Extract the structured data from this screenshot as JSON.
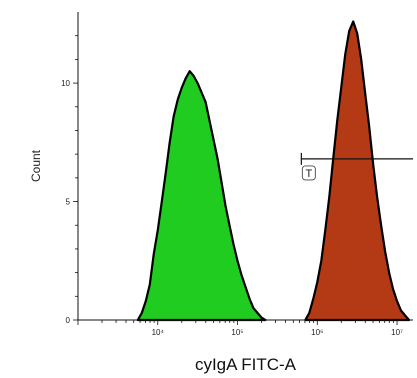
{
  "chart_data": {
    "type": "histogram",
    "xlabel": "cyIgA FITC-A",
    "ylabel": "Count",
    "xscale": "log",
    "xlim_log10": [
      3.0,
      7.2
    ],
    "ylim": [
      0,
      13
    ],
    "x_tick_labels": [
      {
        "log": 4,
        "label": "10⁴"
      },
      {
        "log": 5,
        "label": "10⁵"
      },
      {
        "log": 6,
        "label": "10⁶"
      },
      {
        "log": 7,
        "label": "10⁷"
      }
    ],
    "y_tick_labels": [
      {
        "value": 0,
        "label": "0"
      },
      {
        "value": 5,
        "label": "5"
      },
      {
        "value": 10,
        "label": "10"
      }
    ],
    "series": [
      {
        "color": "#1fcc1f",
        "outline": "#000000",
        "points": [
          [
            3.75,
            0
          ],
          [
            3.8,
            0.3
          ],
          [
            3.85,
            0.8
          ],
          [
            3.9,
            1.5
          ],
          [
            3.95,
            2.8
          ],
          [
            4.0,
            3.8
          ],
          [
            4.05,
            5.0
          ],
          [
            4.1,
            6.2
          ],
          [
            4.15,
            7.5
          ],
          [
            4.2,
            8.6
          ],
          [
            4.25,
            9.3
          ],
          [
            4.3,
            9.8
          ],
          [
            4.35,
            10.2
          ],
          [
            4.4,
            10.5
          ],
          [
            4.45,
            10.3
          ],
          [
            4.5,
            10.0
          ],
          [
            4.55,
            9.6
          ],
          [
            4.6,
            9.2
          ],
          [
            4.65,
            8.4
          ],
          [
            4.7,
            7.6
          ],
          [
            4.75,
            6.8
          ],
          [
            4.8,
            5.8
          ],
          [
            4.85,
            4.8
          ],
          [
            4.9,
            4.0
          ],
          [
            4.95,
            3.2
          ],
          [
            5.0,
            2.5
          ],
          [
            5.05,
            1.9
          ],
          [
            5.1,
            1.4
          ],
          [
            5.15,
            0.9
          ],
          [
            5.2,
            0.5
          ],
          [
            5.25,
            0.3
          ],
          [
            5.3,
            0.1
          ],
          [
            5.35,
            0
          ]
        ]
      },
      {
        "color": "#b33a14",
        "outline": "#000000",
        "points": [
          [
            5.85,
            0
          ],
          [
            5.9,
            0.3
          ],
          [
            5.95,
            0.9
          ],
          [
            6.0,
            1.6
          ],
          [
            6.05,
            2.5
          ],
          [
            6.1,
            3.8
          ],
          [
            6.15,
            5.2
          ],
          [
            6.2,
            6.8
          ],
          [
            6.25,
            8.4
          ],
          [
            6.3,
            9.8
          ],
          [
            6.35,
            11.2
          ],
          [
            6.4,
            12.2
          ],
          [
            6.45,
            12.6
          ],
          [
            6.5,
            12.1
          ],
          [
            6.55,
            11.0
          ],
          [
            6.6,
            9.6
          ],
          [
            6.65,
            8.2
          ],
          [
            6.7,
            6.6
          ],
          [
            6.75,
            5.2
          ],
          [
            6.8,
            4.0
          ],
          [
            6.85,
            2.9
          ],
          [
            6.9,
            2.0
          ],
          [
            6.95,
            1.3
          ],
          [
            7.0,
            0.8
          ],
          [
            7.05,
            0.4
          ],
          [
            7.1,
            0.2
          ],
          [
            7.15,
            0
          ]
        ]
      }
    ],
    "gate": {
      "name": "T",
      "x_start_log10": 5.8,
      "x_end_log10": 7.2,
      "y": 6.8
    }
  }
}
